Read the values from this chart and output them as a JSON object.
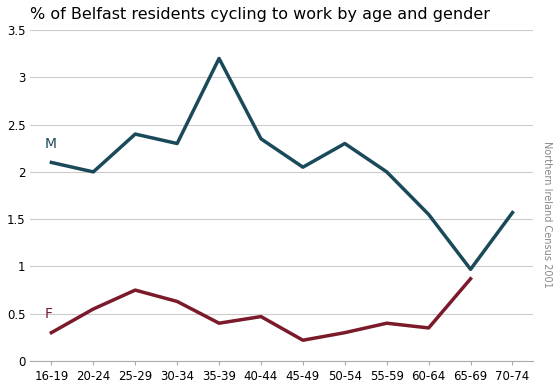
{
  "title": "% of Belfast residents cycling to work by age and gender",
  "age_groups": [
    "16-19",
    "20-24",
    "25-29",
    "30-34",
    "35-39",
    "40-44",
    "45-49",
    "50-54",
    "55-59",
    "60-64",
    "65-69",
    "70-74"
  ],
  "male_x": [
    0,
    1,
    2,
    3,
    4,
    5,
    6,
    7,
    8,
    9,
    10,
    11
  ],
  "male": [
    2.1,
    2.0,
    2.4,
    2.3,
    3.2,
    2.35,
    2.05,
    2.3,
    2.0,
    1.55,
    0.97,
    1.57
  ],
  "female_x": [
    0,
    1,
    2,
    3,
    4,
    5,
    6,
    7,
    8,
    9,
    10
  ],
  "female": [
    0.3,
    0.55,
    0.75,
    0.63,
    0.4,
    0.47,
    0.22,
    0.3,
    0.4,
    0.35,
    0.87
  ],
  "male_color": "#1a4a5a",
  "female_color": "#7a1a2a",
  "male_label": "M",
  "female_label": "F",
  "ylim": [
    0,
    3.5
  ],
  "yticks": [
    0,
    0.5,
    1.0,
    1.5,
    2.0,
    2.5,
    3.0,
    3.5
  ],
  "line_width": 2.5,
  "watermark": "Northern Ireland Census 2001",
  "background_color": "#ffffff",
  "grid_color": "#cccccc"
}
